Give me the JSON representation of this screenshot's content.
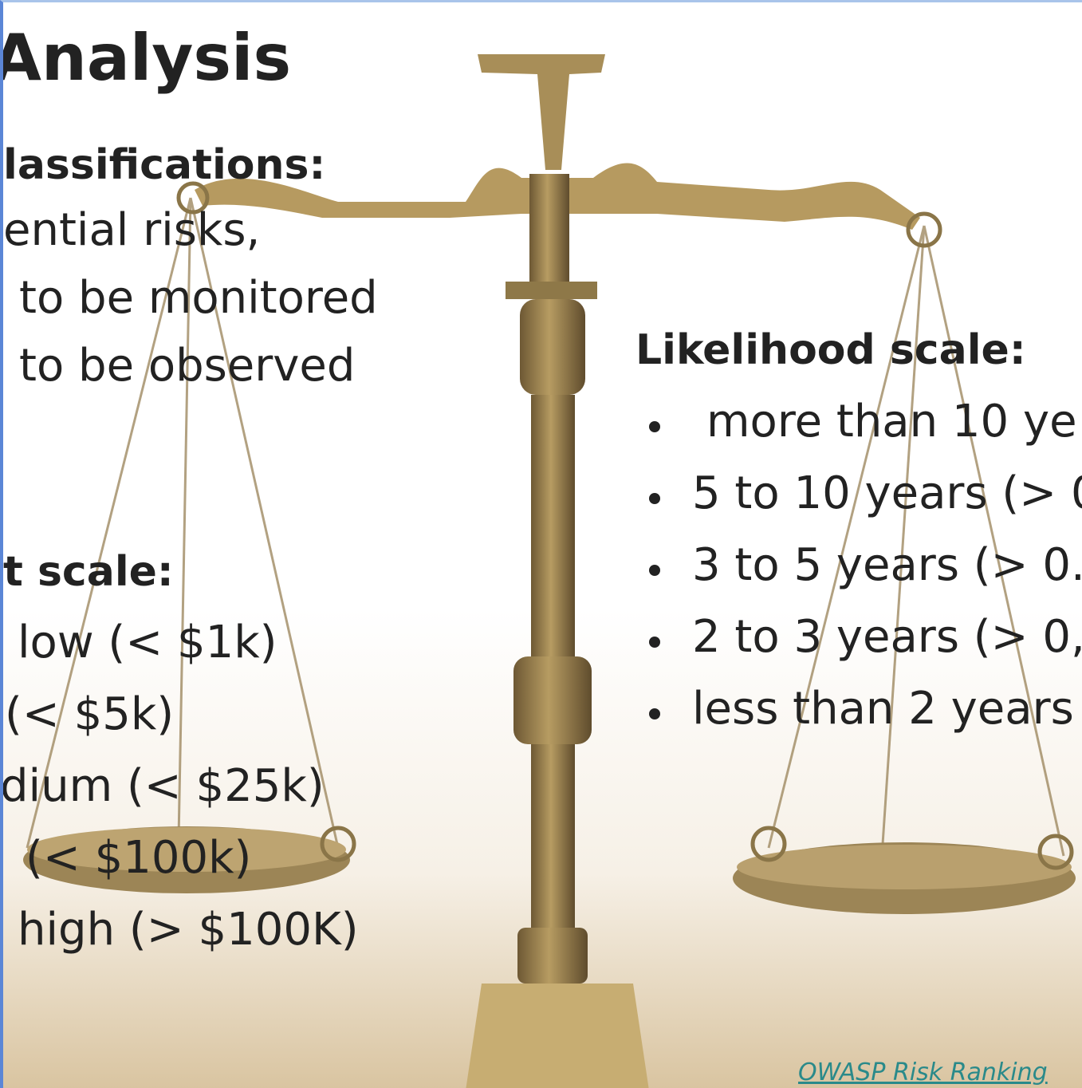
{
  "header": {
    "title": "Analysis"
  },
  "left": {
    "classifications": {
      "heading": "lassifications:",
      "items": [
        "ential risks,",
        "to be monitored",
        "to be observed"
      ]
    },
    "impact": {
      "heading": "t scale:",
      "items": [
        "low (< $1k)",
        "(< $5k)",
        "dium (< $25k)",
        "(< $100k)",
        "high (> $100K)"
      ]
    }
  },
  "right": {
    "likelihood": {
      "heading": "Likelihood scale:",
      "items": [
        "more than 10 ye",
        "5 to 10 years (> 0",
        "3 to 5 years (> 0.",
        "2 to 3 years (> 0,",
        "less than 2 years"
      ]
    }
  },
  "footer": {
    "link": "OWASP Risk Ranking"
  }
}
